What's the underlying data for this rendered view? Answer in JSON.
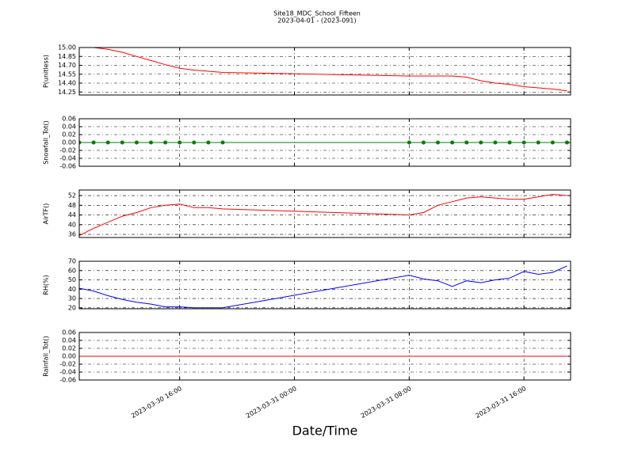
{
  "chart_data": [
    {
      "type": "line",
      "title": "Site18_MDC_School_Fifteen",
      "subtitle": "2023-04-01 - (2023-091)",
      "ylabel": "P(unitless)",
      "color": "#ff0000",
      "x": [
        "2023-03-30 09:00",
        "2023-03-30 10:00",
        "2023-03-30 11:00",
        "2023-03-30 12:00",
        "2023-03-30 13:00",
        "2023-03-30 14:00",
        "2023-03-30 15:00",
        "2023-03-30 16:00",
        "2023-03-30 17:00",
        "2023-03-30 18:00",
        "2023-03-30 19:00",
        "2023-03-31 08:00",
        "2023-03-31 09:00",
        "2023-03-31 10:00",
        "2023-03-31 11:00",
        "2023-03-31 12:00",
        "2023-03-31 13:00",
        "2023-03-31 14:00",
        "2023-03-31 15:00",
        "2023-03-31 16:00",
        "2023-03-31 17:00",
        "2023-03-31 18:00",
        "2023-03-31 19:00"
      ],
      "values": [
        15.03,
        15.0,
        14.97,
        14.92,
        14.85,
        14.78,
        14.71,
        14.65,
        14.62,
        14.6,
        14.58,
        14.52,
        14.52,
        14.52,
        14.52,
        14.5,
        14.44,
        14.4,
        14.38,
        14.34,
        14.32,
        14.3,
        14.27
      ],
      "xlim": [
        "2023-03-30 09:00",
        "2023-03-31 19:15"
      ],
      "xticks": [
        "2023-03-30 16:00",
        "2023-03-31 00:00",
        "2023-03-31 08:00",
        "2023-03-31 16:00"
      ],
      "ylim": [
        14.2,
        15.0
      ],
      "yticks": [
        14.25,
        {
          "value": 14.4,
          "label": "14.40"
        },
        14.55,
        {
          "value": 14.7,
          "label": "14.70"
        },
        14.85,
        {
          "value": 15.0,
          "label": "15.00"
        }
      ],
      "grid": true
    },
    {
      "type": "line",
      "ylabel": "Snowfall_Tot()",
      "color": "#008000",
      "marker": "o",
      "x": [
        "2023-03-30 09:00",
        "2023-03-30 10:00",
        "2023-03-30 11:00",
        "2023-03-30 12:00",
        "2023-03-30 13:00",
        "2023-03-30 14:00",
        "2023-03-30 15:00",
        "2023-03-30 16:00",
        "2023-03-30 17:00",
        "2023-03-30 18:00",
        "2023-03-30 19:00",
        "2023-03-31 08:00",
        "2023-03-31 09:00",
        "2023-03-31 10:00",
        "2023-03-31 11:00",
        "2023-03-31 12:00",
        "2023-03-31 13:00",
        "2023-03-31 14:00",
        "2023-03-31 15:00",
        "2023-03-31 16:00",
        "2023-03-31 17:00",
        "2023-03-31 18:00",
        "2023-03-31 19:00"
      ],
      "values": [
        0,
        0,
        0,
        0,
        0,
        0,
        0,
        0,
        0,
        0,
        0,
        0,
        0,
        0,
        0,
        0,
        0,
        0,
        0,
        0,
        0,
        0,
        0
      ],
      "xlim": [
        "2023-03-30 09:00",
        "2023-03-31 19:15"
      ],
      "xticks": [
        "2023-03-30 16:00",
        "2023-03-31 00:00",
        "2023-03-31 08:00",
        "2023-03-31 16:00"
      ],
      "ylim": [
        -0.06,
        0.06
      ],
      "yticks": [
        -0.06,
        -0.04,
        -0.02,
        {
          "value": 0,
          "label": "0.00"
        },
        0.02,
        0.04,
        0.06
      ],
      "grid": true
    },
    {
      "type": "line",
      "ylabel": "AirTF()",
      "color": "#ff0000",
      "x": [
        "2023-03-30 09:00",
        "2023-03-30 10:00",
        "2023-03-30 11:00",
        "2023-03-30 12:00",
        "2023-03-30 13:00",
        "2023-03-30 14:00",
        "2023-03-30 15:00",
        "2023-03-30 16:00",
        "2023-03-30 17:00",
        "2023-03-30 18:00",
        "2023-03-30 19:00",
        "2023-03-31 08:00",
        "2023-03-31 09:00",
        "2023-03-31 10:00",
        "2023-03-31 11:00",
        "2023-03-31 12:00",
        "2023-03-31 13:00",
        "2023-03-31 14:00",
        "2023-03-31 15:00",
        "2023-03-31 16:00",
        "2023-03-31 17:00",
        "2023-03-31 18:00",
        "2023-03-31 19:00"
      ],
      "values": [
        35.5,
        38.5,
        41,
        43.5,
        45,
        47,
        48,
        48.5,
        47,
        47,
        46.5,
        44,
        45,
        48,
        49.5,
        51,
        51.5,
        51,
        50.5,
        50.5,
        51.5,
        52.5,
        52
      ],
      "xlim": [
        "2023-03-30 09:00",
        "2023-03-31 19:15"
      ],
      "xticks": [
        "2023-03-30 16:00",
        "2023-03-31 00:00",
        "2023-03-31 08:00",
        "2023-03-31 16:00"
      ],
      "ylim": [
        34.7,
        54.3
      ],
      "yticks": [
        36,
        40,
        44,
        48,
        52
      ],
      "grid": true
    },
    {
      "type": "line",
      "ylabel": "RH(%)",
      "color": "#0000ff",
      "x": [
        "2023-03-30 09:00",
        "2023-03-30 10:00",
        "2023-03-30 11:00",
        "2023-03-30 12:00",
        "2023-03-30 13:00",
        "2023-03-30 14:00",
        "2023-03-30 15:00",
        "2023-03-30 16:00",
        "2023-03-30 17:00",
        "2023-03-30 18:00",
        "2023-03-30 19:00",
        "2023-03-31 08:00",
        "2023-03-31 09:00",
        "2023-03-31 10:00",
        "2023-03-31 11:00",
        "2023-03-31 12:00",
        "2023-03-31 13:00",
        "2023-03-31 14:00",
        "2023-03-31 15:00",
        "2023-03-31 16:00",
        "2023-03-31 17:00",
        "2023-03-31 18:00",
        "2023-03-31 19:00"
      ],
      "values": [
        41,
        38,
        33,
        29,
        26,
        24,
        21,
        21,
        20,
        20,
        20,
        55,
        51,
        49,
        43,
        49,
        47,
        50,
        52,
        59,
        56,
        58,
        65
      ],
      "xlim": [
        "2023-03-30 09:00",
        "2023-03-31 19:15"
      ],
      "xticks": [
        "2023-03-30 16:00",
        "2023-03-31 00:00",
        "2023-03-31 08:00",
        "2023-03-31 16:00"
      ],
      "ylim": [
        19,
        70
      ],
      "yticks": [
        20,
        30,
        40,
        50,
        60,
        70
      ],
      "grid": true
    },
    {
      "type": "line",
      "ylabel": "Rainfall_Tot()",
      "xlabel": "Date/Time",
      "color": "#ff0000",
      "x": [
        "2023-03-30 09:00",
        "2023-03-30 10:00",
        "2023-03-30 11:00",
        "2023-03-30 12:00",
        "2023-03-30 13:00",
        "2023-03-30 14:00",
        "2023-03-30 15:00",
        "2023-03-30 16:00",
        "2023-03-30 17:00",
        "2023-03-30 18:00",
        "2023-03-30 19:00",
        "2023-03-31 08:00",
        "2023-03-31 09:00",
        "2023-03-31 10:00",
        "2023-03-31 11:00",
        "2023-03-31 12:00",
        "2023-03-31 13:00",
        "2023-03-31 14:00",
        "2023-03-31 15:00",
        "2023-03-31 16:00",
        "2023-03-31 17:00",
        "2023-03-31 18:00",
        "2023-03-31 19:00"
      ],
      "values": [
        0,
        0,
        0,
        0,
        0,
        0,
        0,
        0,
        0,
        0,
        0,
        0,
        0,
        0,
        0,
        0,
        0,
        0,
        0,
        0,
        0,
        0,
        0
      ],
      "xlim": [
        "2023-03-30 09:00",
        "2023-03-31 19:15"
      ],
      "xticks": [
        "2023-03-30 16:00",
        "2023-03-31 00:00",
        "2023-03-31 08:00",
        "2023-03-31 16:00"
      ],
      "ylim": [
        -0.06,
        0.06
      ],
      "yticks": [
        -0.06,
        -0.04,
        -0.02,
        {
          "value": 0,
          "label": "0.00"
        },
        0.02,
        0.04,
        0.06
      ],
      "grid": true,
      "show_xtick_labels": true
    }
  ]
}
